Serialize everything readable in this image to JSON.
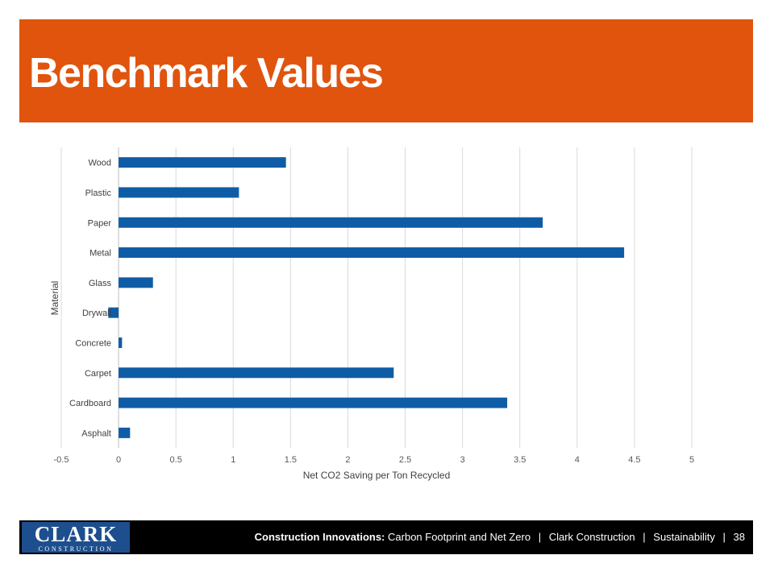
{
  "slide": {
    "title": "Benchmark Values"
  },
  "footer": {
    "logo_main": "CLARK",
    "logo_sub": "CONSTRUCTION",
    "course_bold": "Construction Innovations:",
    "course_rest": "Carbon Footprint and Net Zero",
    "separator": "|",
    "company": "Clark Construction",
    "section": "Sustainability",
    "page_number": "38"
  },
  "colors": {
    "accent": "#e0540e",
    "bar": "#0f5ca6",
    "footer_bg": "#000000",
    "logo_bg": "#1d4f8f"
  },
  "chart_data": {
    "type": "bar",
    "orientation": "horizontal",
    "categories": [
      "Wood",
      "Plastic",
      "Paper",
      "Metal",
      "Glass",
      "Drywall",
      "Concrete",
      "Carpet",
      "Cardboard",
      "Asphalt"
    ],
    "values": [
      1.46,
      1.05,
      3.7,
      4.41,
      0.3,
      -0.09,
      0.03,
      2.4,
      3.39,
      0.1
    ],
    "x_ticks": [
      "-0.5",
      "0",
      "0.5",
      "1",
      "1.5",
      "2",
      "2.5",
      "3",
      "3.5",
      "4",
      "4.5",
      "5"
    ],
    "xlim": [
      -0.5,
      5
    ],
    "xlabel": "Net CO2 Saving per Ton Recycled",
    "ylabel": "Material",
    "grid": true,
    "legend": "none"
  }
}
